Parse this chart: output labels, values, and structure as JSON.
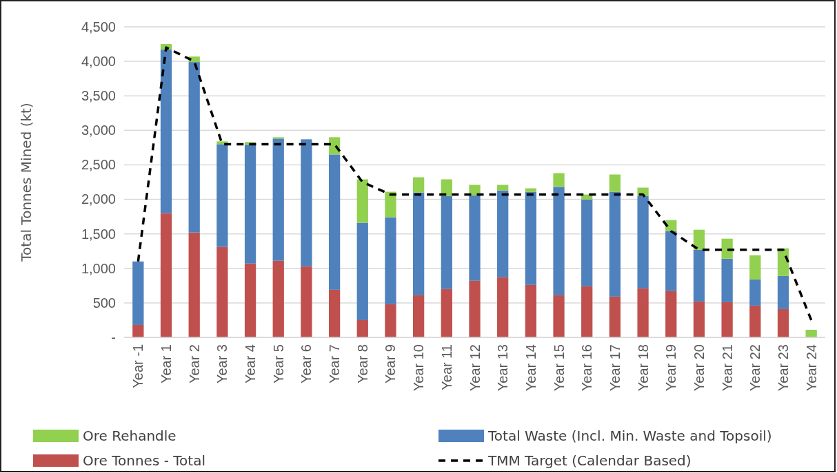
{
  "chart_data": {
    "type": "bar",
    "stacked": true,
    "ylabel": "Total Tonnes Mined (kt)",
    "categories": [
      "Year -1",
      "Year 1",
      "Year 2",
      "Year 3",
      "Year 4",
      "Year 5",
      "Year 6",
      "Year 7",
      "Year 8",
      "Year 9",
      "Year 10",
      "Year 11",
      "Year 12",
      "Year 13",
      "Year 14",
      "Year 15",
      "Year 16",
      "Year 17",
      "Year 18",
      "Year 19",
      "Year 20",
      "Year 21",
      "Year 22",
      "Year 23",
      "Year 24"
    ],
    "series": [
      {
        "name": "Ore Tonnes - Total",
        "color": "#c0504d",
        "values": [
          180,
          1800,
          1520,
          1310,
          1070,
          1110,
          1030,
          690,
          250,
          480,
          610,
          700,
          820,
          870,
          760,
          610,
          740,
          590,
          710,
          670,
          520,
          510,
          460,
          410,
          0
        ]
      },
      {
        "name": "Total Waste (Incl. Min. Waste and Topsoil)",
        "color": "#4f81bd",
        "values": [
          920,
          2370,
          2470,
          1490,
          1720,
          1770,
          1840,
          1960,
          1410,
          1260,
          1490,
          1350,
          1240,
          1260,
          1350,
          1570,
          1260,
          1520,
          1340,
          870,
          750,
          630,
          380,
          480,
          0
        ]
      },
      {
        "name": "Ore Rehandle",
        "color": "#92d050",
        "values": [
          0,
          80,
          80,
          40,
          40,
          20,
          0,
          250,
          630,
          370,
          220,
          240,
          150,
          80,
          50,
          200,
          70,
          250,
          120,
          160,
          290,
          290,
          350,
          400,
          110
        ]
      },
      {
        "name": "TMM Target (Calendar Based)",
        "type": "line",
        "color": "#000000",
        "line_style": "dashed",
        "marker": "none",
        "values": [
          1100,
          4200,
          4000,
          2800,
          2800,
          2800,
          2800,
          2800,
          2250,
          2070,
          2070,
          2070,
          2070,
          2070,
          2070,
          2070,
          2070,
          2070,
          2070,
          1540,
          1270,
          1270,
          1270,
          1270,
          250
        ]
      }
    ],
    "ylim": [
      0,
      4500
    ],
    "yticks": [
      {
        "value": 0,
        "label": "-"
      },
      500,
      {
        "value": 1000,
        "label": "1,000"
      },
      {
        "value": 1500,
        "label": "1,500"
      },
      {
        "value": 2000,
        "label": "2,000"
      },
      {
        "value": 2500,
        "label": "2,500"
      },
      {
        "value": 3000,
        "label": "3,000"
      },
      {
        "value": 3500,
        "label": "3,500"
      },
      {
        "value": 4000,
        "label": "4,000"
      },
      {
        "value": 4500,
        "label": "4,500"
      }
    ],
    "grid": "y",
    "legend": "bottom"
  }
}
